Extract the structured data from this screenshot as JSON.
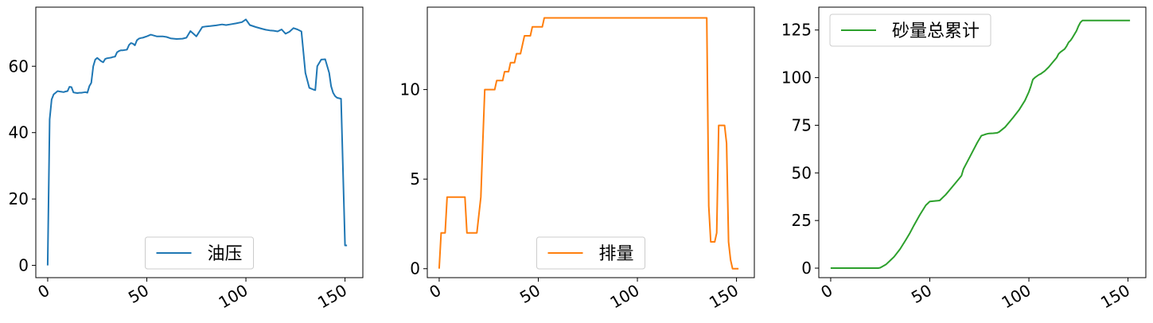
{
  "chart_data": [
    {
      "type": "line",
      "x_ticks": [
        "0",
        "50",
        "100",
        "150"
      ],
      "y_ticks": [
        "0",
        "20",
        "40",
        "60"
      ],
      "xlim": [
        -6,
        159
      ],
      "ylim": [
        -3.7,
        77.8
      ],
      "legend_position": "lower-center",
      "grid": false,
      "series": [
        {
          "name": "油压",
          "color": "#1f77b4",
          "x": [
            0,
            1,
            2,
            3,
            4,
            5,
            6,
            7,
            8,
            9,
            10,
            11,
            12,
            13,
            14,
            15,
            16,
            17,
            18,
            19,
            20,
            21,
            22,
            23,
            24,
            25,
            26,
            27,
            28,
            29,
            30,
            31,
            32,
            33,
            34,
            35,
            36,
            37,
            38,
            39,
            40,
            41,
            42,
            43,
            44,
            45,
            46,
            47,
            48,
            49,
            50,
            52,
            55,
            58,
            60,
            62,
            65,
            68,
            70,
            72,
            75,
            78,
            80,
            82,
            85,
            88,
            90,
            92,
            95,
            98,
            100,
            102,
            105,
            108,
            110,
            112,
            114,
            116,
            118,
            120,
            122,
            124,
            126,
            128,
            130,
            132,
            134,
            135,
            136,
            138,
            140,
            142,
            143,
            144,
            145,
            146,
            148,
            150,
            151
          ],
          "y": [
            0,
            44,
            50,
            51.5,
            52,
            52.5,
            52.4,
            52.3,
            52.2,
            52.4,
            52.5,
            53.8,
            53.7,
            52.1,
            52,
            51.9,
            52,
            52,
            52.1,
            52.2,
            52,
            54,
            55,
            60,
            62,
            62.5,
            62,
            61.5,
            61.2,
            62.2,
            62.4,
            62.5,
            62.6,
            62.8,
            62.9,
            64.2,
            64.6,
            64.8,
            64.8,
            64.9,
            65,
            66.4,
            67,
            66.8,
            66.3,
            67.8,
            68.3,
            68.5,
            68.6,
            68.8,
            69,
            69.5,
            69,
            69,
            68.8,
            68.4,
            68.2,
            68.3,
            68.6,
            70.6,
            69,
            71.8,
            72,
            72.1,
            72.3,
            72.6,
            72.4,
            72.6,
            72.9,
            73.3,
            74.1,
            72.4,
            71.8,
            71.3,
            71,
            70.8,
            70.7,
            70.5,
            71.1,
            69.8,
            70.4,
            71.5,
            71.1,
            70.5,
            58,
            53.5,
            53,
            52.8,
            60,
            62,
            62.1,
            58,
            54,
            52,
            51,
            50.5,
            50.2,
            6,
            6
          ]
        }
      ]
    },
    {
      "type": "line",
      "x_ticks": [
        "0",
        "50",
        "100",
        "150"
      ],
      "y_ticks": [
        "0",
        "5",
        "10"
      ],
      "xlim": [
        -6,
        159
      ],
      "ylim": [
        -0.5,
        14.6
      ],
      "legend_position": "lower-center",
      "grid": false,
      "series": [
        {
          "name": "排量",
          "color": "#ff7f0e",
          "x": [
            0,
            1,
            2,
            3,
            4,
            5,
            6,
            7,
            8,
            9,
            10,
            11,
            12,
            13,
            14,
            15,
            16,
            17,
            18,
            19,
            20,
            21,
            22,
            23,
            24,
            25,
            26,
            27,
            28,
            29,
            30,
            31,
            32,
            33,
            34,
            35,
            36,
            37,
            38,
            39,
            40,
            41,
            42,
            43,
            44,
            45,
            46,
            47,
            48,
            49,
            50,
            51,
            52,
            53,
            54,
            55,
            56,
            57,
            58,
            59,
            60,
            80,
            100,
            120,
            135,
            136,
            137,
            138,
            139,
            140,
            141,
            142,
            143,
            144,
            145,
            146,
            147,
            148,
            150,
            151
          ],
          "y": [
            0,
            2,
            2,
            2,
            4,
            4,
            4,
            4,
            4,
            4,
            4,
            4,
            4,
            4,
            2,
            2,
            2,
            2,
            2,
            2,
            3,
            4,
            7,
            10,
            10,
            10,
            10,
            10,
            10,
            10.5,
            10.5,
            10.5,
            10.5,
            11,
            11,
            11,
            11.5,
            11.5,
            11.5,
            12,
            12,
            12,
            12.5,
            13,
            13,
            13,
            13,
            13.5,
            13.5,
            13.5,
            13.5,
            13.5,
            13.5,
            14,
            14,
            14,
            14,
            14,
            14,
            14,
            14,
            14,
            14,
            14,
            14,
            3.5,
            1.5,
            1.5,
            1.5,
            2,
            8,
            8,
            8,
            8,
            7,
            1.5,
            0.5,
            0,
            0,
            0
          ]
        }
      ]
    },
    {
      "type": "line",
      "x_ticks": [
        "0",
        "50",
        "100",
        "150"
      ],
      "y_ticks": [
        "0",
        "25",
        "50",
        "75",
        "100",
        "125"
      ],
      "xlim": [
        -6,
        159
      ],
      "ylim": [
        -5,
        137
      ],
      "legend_position": "upper-left",
      "grid": false,
      "series": [
        {
          "name": "砂量总累计",
          "color": "#2ca02c",
          "x": [
            0,
            5,
            10,
            15,
            20,
            24,
            25,
            26,
            28,
            30,
            32,
            35,
            38,
            40,
            42,
            45,
            48,
            50,
            52,
            54,
            55,
            56,
            57,
            58,
            60,
            62,
            64,
            66,
            67,
            68,
            70,
            72,
            74,
            76,
            78,
            79,
            80,
            82,
            84,
            85,
            88,
            90,
            92,
            95,
            98,
            100,
            101,
            102,
            103,
            105,
            106,
            108,
            110,
            112,
            114,
            115,
            116,
            118,
            119,
            120,
            121,
            122,
            124,
            125,
            126,
            127,
            128,
            130,
            135,
            140,
            145,
            150,
            151
          ],
          "y": [
            0,
            0,
            0,
            0,
            0,
            0,
            0.2,
            0.8,
            2,
            4,
            6,
            10,
            15,
            18.5,
            22.5,
            28,
            33,
            35,
            35.2,
            35.4,
            35.5,
            36.5,
            37.5,
            38.5,
            41,
            43.5,
            46,
            48.5,
            52,
            54,
            58,
            62,
            66,
            69.5,
            70.2,
            70.5,
            70.7,
            70.8,
            71,
            71.5,
            74,
            76.5,
            79,
            83,
            88,
            92.5,
            95.5,
            99,
            100,
            101.5,
            102,
            103.5,
            105.5,
            108,
            110.5,
            112.5,
            113.5,
            115,
            116.5,
            118.5,
            119.5,
            121,
            124.5,
            127,
            129,
            130,
            130,
            130,
            130,
            130,
            130,
            130,
            130
          ]
        }
      ]
    }
  ]
}
